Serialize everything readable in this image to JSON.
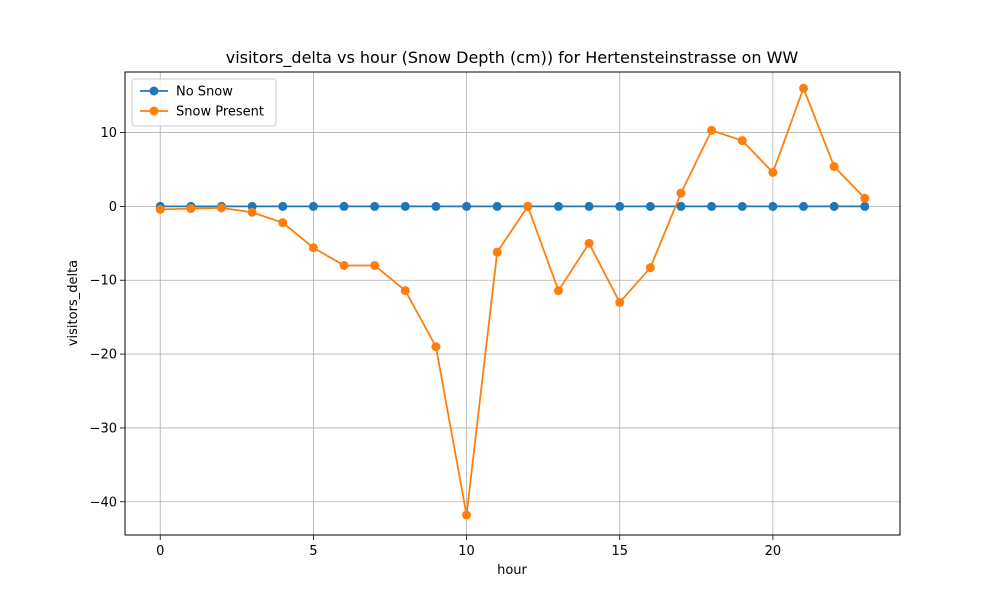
{
  "chart_data": {
    "type": "line",
    "title": "visitors_delta vs hour (Snow Depth (cm)) for Hertensteinstrasse on WW",
    "xlabel": "hour",
    "ylabel": "visitors_delta",
    "xlim": [
      -1.15,
      24.15
    ],
    "ylim": [
      -44.5,
      18.2
    ],
    "xticks": [
      0,
      5,
      10,
      15,
      20
    ],
    "yticks": [
      -40,
      -30,
      -20,
      -10,
      0,
      10
    ],
    "grid": true,
    "legend_position": "upper-left",
    "x": [
      0,
      1,
      2,
      3,
      4,
      5,
      6,
      7,
      8,
      9,
      10,
      11,
      12,
      13,
      14,
      15,
      16,
      17,
      18,
      19,
      20,
      21,
      22,
      23
    ],
    "series": [
      {
        "name": "No Snow",
        "color": "#1f77b4",
        "values": [
          0,
          0,
          0,
          0,
          0,
          0,
          0,
          0,
          0,
          0,
          0,
          0,
          0,
          0,
          0,
          0,
          0,
          0,
          0,
          0,
          0,
          0,
          0,
          0
        ]
      },
      {
        "name": "Snow Present",
        "color": "#ff7f0e",
        "values": [
          -0.4,
          -0.3,
          -0.2,
          -0.8,
          -2.2,
          -5.6,
          -8.0,
          -8.0,
          -11.4,
          -19.0,
          -41.8,
          -6.2,
          0.0,
          -11.4,
          -5.0,
          -13.0,
          -8.3,
          1.8,
          10.3,
          8.9,
          4.6,
          16.0,
          5.4,
          1.1
        ]
      }
    ]
  }
}
